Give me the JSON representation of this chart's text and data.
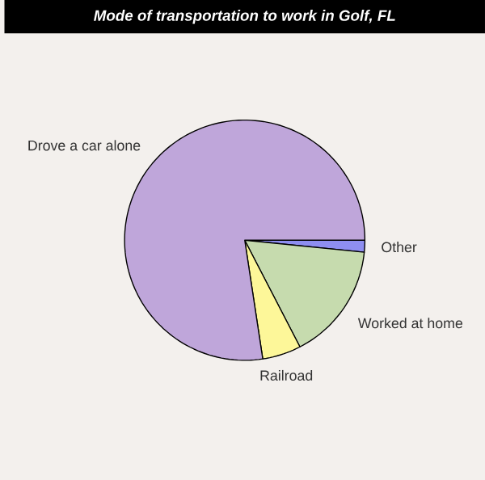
{
  "chart_data": {
    "type": "pie",
    "title": "Mode of transportation to work in Golf, FL",
    "categories": [
      "Other",
      "Worked at home",
      "Railroad",
      "Drove a car alone"
    ],
    "values": [
      1.6,
      15.8,
      5.2,
      77.4
    ],
    "colors": [
      "#8e8ef0",
      "#c6dbae",
      "#fdf799",
      "#bfa6da"
    ]
  }
}
